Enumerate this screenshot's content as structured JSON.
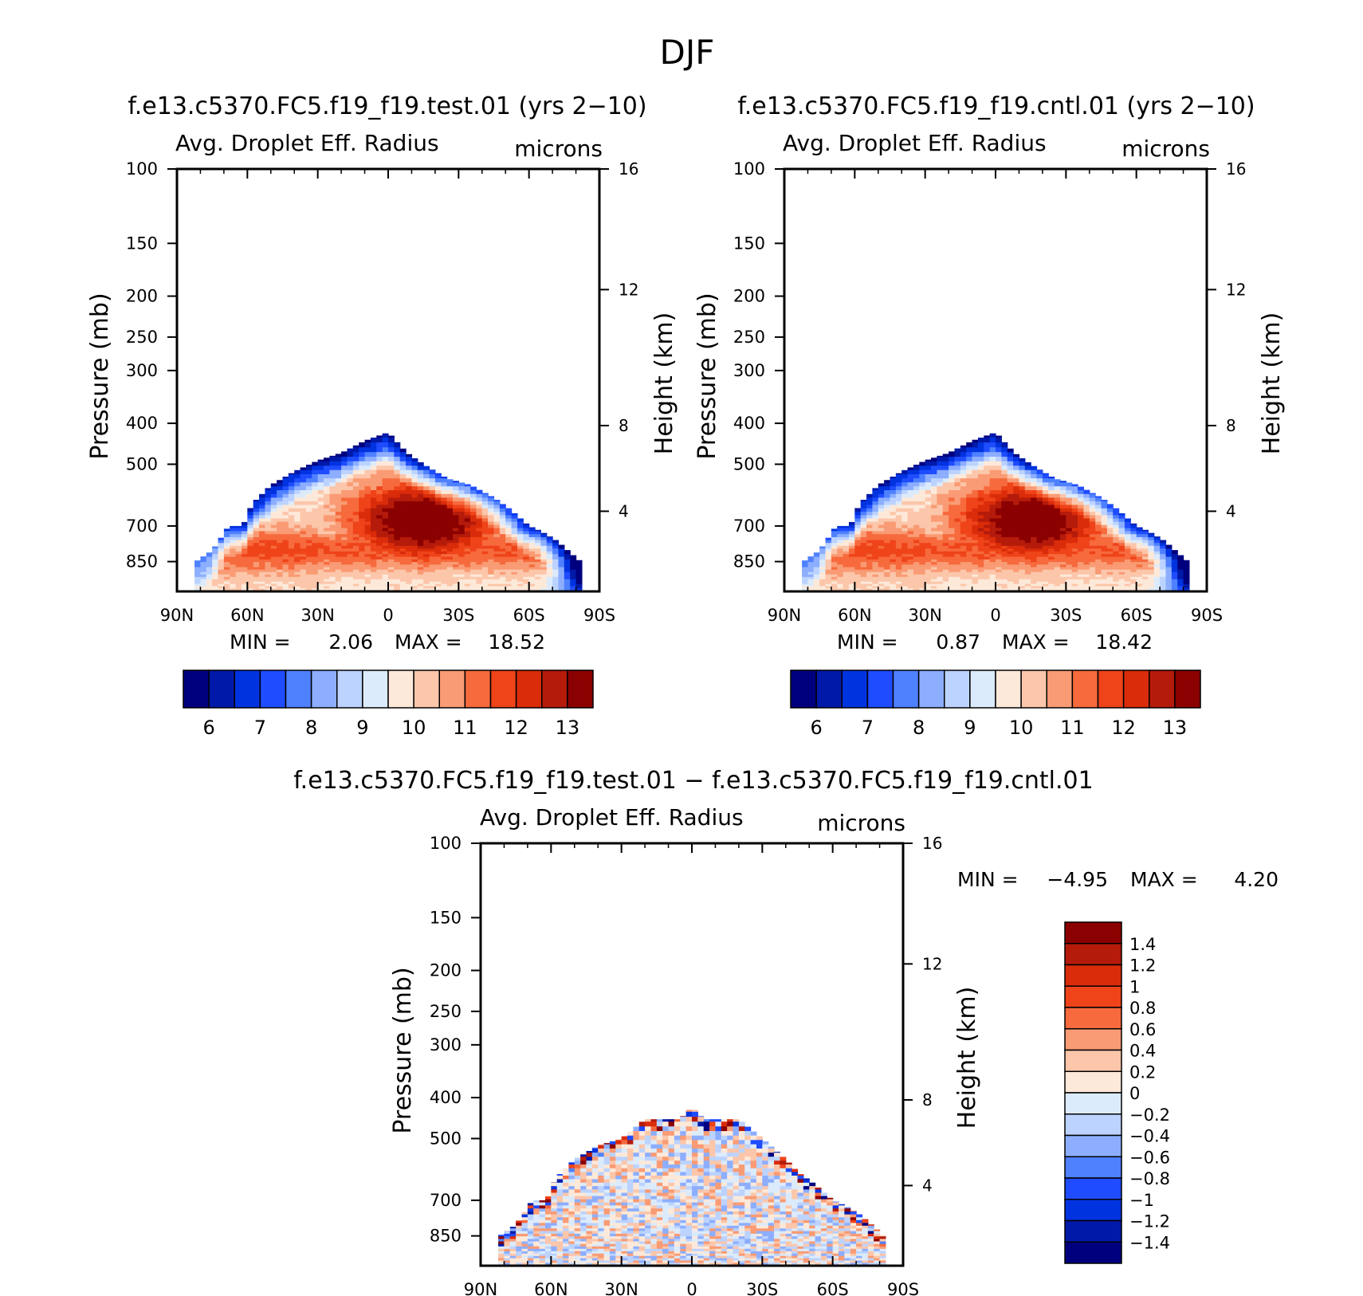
{
  "figure_title": "DJF",
  "colors": {
    "abs_scale": [
      "#00007f",
      "#0019a8",
      "#0033e0",
      "#1f4cff",
      "#4f81ff",
      "#8daeff",
      "#bcd3ff",
      "#dcebfb",
      "#fde9d9",
      "#fcc6aa",
      "#f99b74",
      "#f66a3d",
      "#ef4319",
      "#da2c0a",
      "#b51b0a",
      "#8b0000"
    ],
    "diff_scale": [
      "#00007f",
      "#0019a8",
      "#0033e0",
      "#1f4cff",
      "#4f81ff",
      "#8daeff",
      "#bcd3ff",
      "#dcebfb",
      "#fde9d9",
      "#fcc6aa",
      "#f99b74",
      "#f66a3d",
      "#ef4319",
      "#da2c0a",
      "#b51b0a",
      "#8b0000"
    ]
  },
  "chart_data": [
    {
      "type": "heatmap",
      "title": "f.e13.c5370.FC5.f19_f19.test.01 (yrs 2−10)",
      "left_subtitle": "Avg. Droplet Eff. Radius",
      "right_subtitle": "microns",
      "xlabel": "",
      "ylabel": "Pressure (mb)",
      "y2label": "Height (km)",
      "x_ticks": [
        "90N",
        "60N",
        "30N",
        "0",
        "30S",
        "60S",
        "90S"
      ],
      "y_ticks": [
        100,
        150,
        200,
        250,
        300,
        400,
        500,
        700,
        850
      ],
      "y2_ticks": [
        16,
        12,
        8,
        4
      ],
      "min_label": "MIN =",
      "min_value": "2.06",
      "max_label": "MAX =",
      "max_value": "18.52",
      "colorbar_labels": [
        "6",
        "7",
        "8",
        "9",
        "10",
        "11",
        "12",
        "13"
      ],
      "levels": [
        5.5,
        6,
        6.5,
        7,
        7.5,
        8,
        8.5,
        9,
        9.5,
        10,
        10.5,
        11,
        11.5,
        12,
        12.5,
        13
      ],
      "field": {
        "lat": [
          -90,
          90
        ],
        "pressure": [
          100,
          1000
        ],
        "cloud_top_pressure": [
          [
            -82,
            850
          ],
          [
            -75,
            800
          ],
          [
            -68,
            700
          ],
          [
            -62,
            700
          ],
          [
            -58,
            620
          ],
          [
            -50,
            560
          ],
          [
            -40,
            520
          ],
          [
            -30,
            490
          ],
          [
            -20,
            470
          ],
          [
            -10,
            440
          ],
          [
            0,
            420
          ],
          [
            8,
            470
          ],
          [
            15,
            500
          ],
          [
            25,
            540
          ],
          [
            35,
            560
          ],
          [
            45,
            600
          ],
          [
            52,
            640
          ],
          [
            60,
            700
          ],
          [
            65,
            720
          ],
          [
            72,
            760
          ],
          [
            82,
            850
          ]
        ],
        "core": {
          "lat": 15,
          "pressure": 680,
          "value": 13.5
        },
        "low_level_value": 11
      }
    },
    {
      "type": "heatmap",
      "title": "f.e13.c5370.FC5.f19_f19.cntl.01 (yrs 2−10)",
      "left_subtitle": "Avg. Droplet Eff. Radius",
      "right_subtitle": "microns",
      "xlabel": "",
      "ylabel": "Pressure (mb)",
      "y2label": "Height (km)",
      "x_ticks": [
        "90N",
        "60N",
        "30N",
        "0",
        "30S",
        "60S",
        "90S"
      ],
      "y_ticks": [
        100,
        150,
        200,
        250,
        300,
        400,
        500,
        700,
        850
      ],
      "y2_ticks": [
        16,
        12,
        8,
        4
      ],
      "min_label": "MIN =",
      "min_value": "0.87",
      "max_label": "MAX =",
      "max_value": "18.42",
      "colorbar_labels": [
        "6",
        "7",
        "8",
        "9",
        "10",
        "11",
        "12",
        "13"
      ],
      "levels": [
        5.5,
        6,
        6.5,
        7,
        7.5,
        8,
        8.5,
        9,
        9.5,
        10,
        10.5,
        11,
        11.5,
        12,
        12.5,
        13
      ],
      "field": {
        "lat": [
          -90,
          90
        ],
        "pressure": [
          100,
          1000
        ],
        "cloud_top_pressure": [
          [
            -82,
            850
          ],
          [
            -75,
            800
          ],
          [
            -68,
            700
          ],
          [
            -62,
            700
          ],
          [
            -58,
            620
          ],
          [
            -50,
            560
          ],
          [
            -40,
            520
          ],
          [
            -30,
            490
          ],
          [
            -20,
            470
          ],
          [
            -10,
            440
          ],
          [
            0,
            420
          ],
          [
            8,
            470
          ],
          [
            15,
            500
          ],
          [
            25,
            540
          ],
          [
            35,
            560
          ],
          [
            45,
            600
          ],
          [
            52,
            640
          ],
          [
            60,
            700
          ],
          [
            65,
            720
          ],
          [
            72,
            760
          ],
          [
            82,
            850
          ]
        ],
        "core": {
          "lat": 15,
          "pressure": 680,
          "value": 13.4
        },
        "low_level_value": 11
      }
    },
    {
      "type": "heatmap",
      "title": "f.e13.c5370.FC5.f19_f19.test.01 − f.e13.c5370.FC5.f19_f19.cntl.01",
      "left_subtitle": "Avg. Droplet Eff. Radius",
      "right_subtitle": "microns",
      "xlabel": "",
      "ylabel": "Pressure (mb)",
      "y2label": "Height (km)",
      "x_ticks": [
        "90N",
        "60N",
        "30N",
        "0",
        "30S",
        "60S",
        "90S"
      ],
      "y_ticks": [
        100,
        150,
        200,
        250,
        300,
        400,
        500,
        700,
        850
      ],
      "y2_ticks": [
        16,
        12,
        8,
        4
      ],
      "min_label": "MIN =",
      "min_value": "−4.95",
      "max_label": "MAX =",
      "max_value": "4.20",
      "colorbar_labels": [
        "1.4",
        "1.2",
        "1",
        "0.8",
        "0.6",
        "0.4",
        "0.2",
        "0",
        "−0.2",
        "−0.4",
        "−0.6",
        "−0.8",
        "−1",
        "−1.2",
        "−1.4"
      ],
      "levels": [
        -1.4,
        -1.2,
        -1,
        -0.8,
        -0.6,
        -0.4,
        -0.2,
        0,
        0.2,
        0.4,
        0.6,
        0.8,
        1,
        1.2,
        1.4
      ],
      "field": {
        "lat": [
          -90,
          90
        ],
        "pressure": [
          100,
          1000
        ],
        "cloud_top_pressure": [
          [
            -82,
            850
          ],
          [
            -75,
            800
          ],
          [
            -68,
            700
          ],
          [
            -62,
            700
          ],
          [
            -58,
            620
          ],
          [
            -50,
            560
          ],
          [
            -40,
            520
          ],
          [
            -30,
            500
          ],
          [
            -20,
            450
          ],
          [
            -5,
            450
          ],
          [
            0,
            420
          ],
          [
            5,
            450
          ],
          [
            20,
            450
          ],
          [
            30,
            500
          ],
          [
            40,
            560
          ],
          [
            45,
            600
          ],
          [
            52,
            640
          ],
          [
            60,
            700
          ],
          [
            65,
            720
          ],
          [
            72,
            760
          ],
          [
            82,
            850
          ]
        ],
        "value_range": [
          -1.4,
          1.4
        ]
      }
    }
  ]
}
